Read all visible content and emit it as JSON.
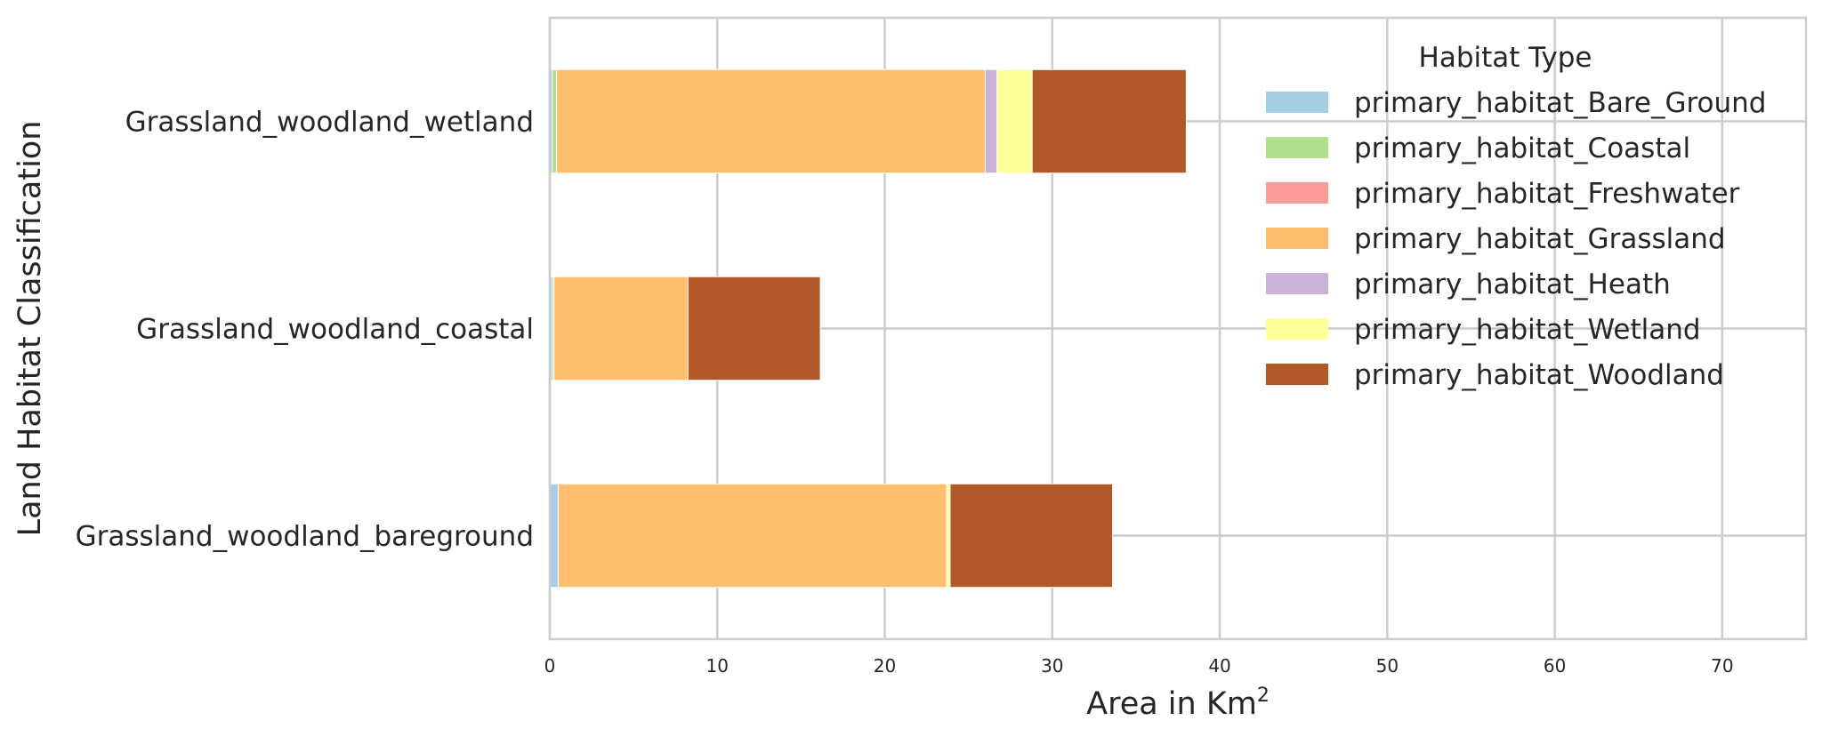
{
  "chart_data": {
    "type": "bar",
    "orientation": "horizontal",
    "stacked": true,
    "categories": [
      "Grassland_woodland_bareground",
      "Grassland_woodland_coastal",
      "Grassland_woodland_wetland"
    ],
    "series": [
      {
        "name": "primary_habitat_Bare_Ground",
        "color": "#a6cee3",
        "values": [
          0.5,
          0.15,
          0.15
        ]
      },
      {
        "name": "primary_habitat_Coastal",
        "color": "#b2df8a",
        "values": [
          0.0,
          0.1,
          0.25
        ]
      },
      {
        "name": "primary_habitat_Freshwater",
        "color": "#fb9a99",
        "values": [
          0.0,
          0.0,
          0.0
        ]
      },
      {
        "name": "primary_habitat_Grassland",
        "color": "#fdbf6f",
        "values": [
          23.2,
          8.0,
          25.6
        ]
      },
      {
        "name": "primary_habitat_Heath",
        "color": "#cab2d6",
        "values": [
          0.0,
          0.0,
          0.7
        ]
      },
      {
        "name": "primary_habitat_Wetland",
        "color": "#ffff99",
        "values": [
          0.2,
          0.0,
          2.1
        ]
      },
      {
        "name": "primary_habitat_Woodland",
        "color": "#b15928",
        "values": [
          9.7,
          7.9,
          9.2
        ]
      }
    ],
    "xlabel": "Area in Km",
    "xlabel_superscript": "2",
    "ylabel": "Land Habitat Classification",
    "xlim": [
      0,
      75
    ],
    "xticks": [
      0,
      10,
      20,
      30,
      40,
      50,
      60,
      70
    ],
    "grid": true,
    "legend": {
      "title": "Habitat Type",
      "placement": "top-right"
    }
  }
}
